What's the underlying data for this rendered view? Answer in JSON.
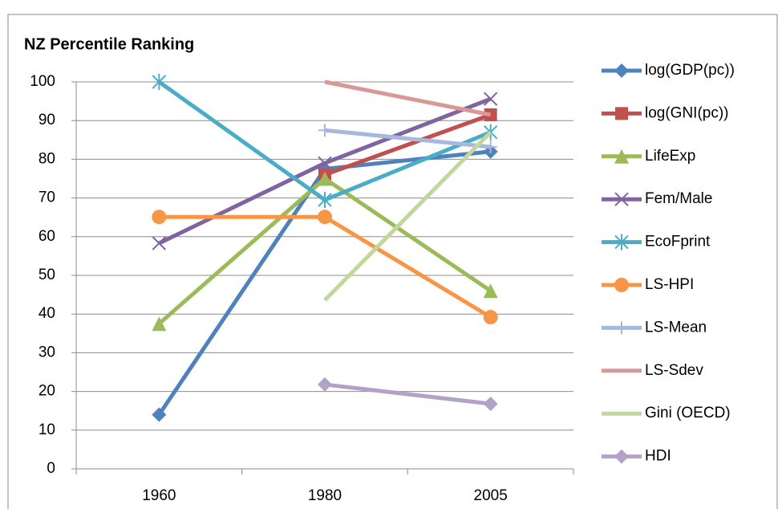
{
  "chart_data": {
    "type": "line",
    "title": "NZ Percentile Ranking",
    "categories": [
      "1960",
      "1980",
      "2005"
    ],
    "ylim": [
      0,
      100
    ],
    "yticks": [
      0,
      10,
      20,
      30,
      40,
      50,
      60,
      70,
      80,
      90,
      100
    ],
    "grid": true,
    "series": [
      {
        "name": "log(GDP(pc))",
        "color": "#4f81bd",
        "marker": "diamond",
        "values": [
          14,
          77.5,
          82
        ]
      },
      {
        "name": "log(GNI(pc))",
        "color": "#c0504d",
        "marker": "square",
        "values": [
          null,
          76,
          91.5
        ]
      },
      {
        "name": "LifeExp",
        "color": "#9bbb59",
        "marker": "triangle",
        "values": [
          37.5,
          75,
          46
        ]
      },
      {
        "name": "Fem/Male",
        "color": "#8064a2",
        "marker": "x",
        "values": [
          58.3,
          79,
          95.6
        ]
      },
      {
        "name": "EcoFprint",
        "color": "#4bacc6",
        "marker": "star",
        "values": [
          100,
          69.5,
          87
        ]
      },
      {
        "name": "LS-HPI",
        "color": "#f79646",
        "marker": "circle",
        "values": [
          65.1,
          65.1,
          39.2
        ]
      },
      {
        "name": "LS-Mean",
        "color": "#a6b9dc",
        "marker": "plus",
        "values": [
          null,
          87.5,
          83.2
        ]
      },
      {
        "name": "LS-Sdev",
        "color": "#d99795",
        "marker": "none",
        "values": [
          null,
          100,
          91.5
        ]
      },
      {
        "name": "Gini (OECD)",
        "color": "#c3d69b",
        "marker": "none",
        "values": [
          null,
          43.6,
          87
        ]
      },
      {
        "name": "HDI",
        "color": "#b3a2c7",
        "marker": "diamond",
        "values": [
          null,
          21.8,
          16.8
        ]
      }
    ]
  }
}
